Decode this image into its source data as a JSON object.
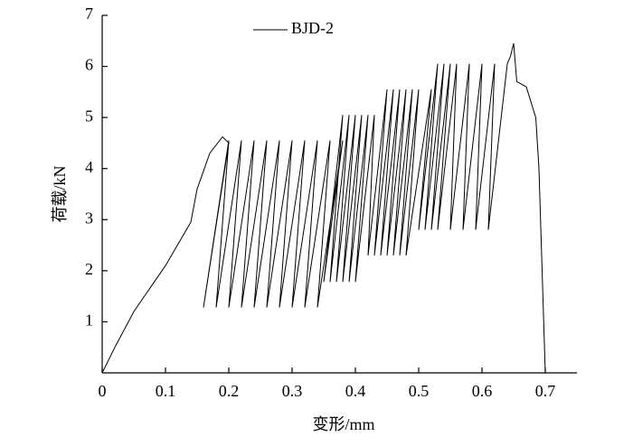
{
  "chart_data": {
    "type": "line",
    "x_label": "变形/mm",
    "y_label": "荷载/kN",
    "xlim": [
      0,
      0.75
    ],
    "ylim": [
      0,
      7
    ],
    "xticks": [
      0,
      0.1,
      0.2,
      0.3,
      0.4,
      0.5,
      0.6,
      0.7
    ],
    "yticks": [
      1,
      2,
      3,
      4,
      5,
      6,
      7
    ],
    "legend": "upper left",
    "x": [
      0,
      0.02,
      0.05,
      0.1,
      0.14,
      0.15,
      0.17,
      0.19,
      0.2,
      0.16,
      0.2,
      0.18,
      0.22,
      0.2,
      0.24,
      0.22,
      0.26,
      0.24,
      0.28,
      0.26,
      0.3,
      0.28,
      0.32,
      0.3,
      0.34,
      0.32,
      0.36,
      0.34,
      0.38,
      0.35,
      0.38,
      0.36,
      0.39,
      0.37,
      0.4,
      0.38,
      0.41,
      0.39,
      0.42,
      0.4,
      0.43,
      0.42,
      0.45,
      0.43,
      0.46,
      0.44,
      0.47,
      0.45,
      0.48,
      0.46,
      0.49,
      0.47,
      0.5,
      0.48,
      0.52,
      0.5,
      0.53,
      0.51,
      0.54,
      0.52,
      0.55,
      0.53,
      0.56,
      0.55,
      0.58,
      0.57,
      0.6,
      0.59,
      0.62,
      0.61,
      0.64,
      0.645,
      0.65,
      0.655,
      0.67,
      0.685,
      0.69,
      0.695,
      0.7
    ],
    "series": [
      {
        "name": "BJD-2",
        "color": "#000000",
        "values": [
          0,
          0.5,
          1.2,
          2.1,
          2.95,
          3.6,
          4.3,
          4.62,
          4.5,
          1.28,
          4.55,
          1.28,
          4.55,
          1.28,
          4.55,
          1.28,
          4.55,
          1.28,
          4.55,
          1.28,
          4.55,
          1.28,
          4.55,
          1.28,
          4.55,
          1.28,
          4.55,
          1.28,
          4.55,
          1.78,
          5.05,
          1.78,
          5.05,
          1.78,
          5.05,
          1.78,
          5.05,
          1.78,
          5.05,
          1.78,
          5.05,
          2.3,
          5.55,
          2.3,
          5.55,
          2.3,
          5.55,
          2.3,
          5.55,
          2.3,
          5.55,
          2.3,
          5.55,
          2.3,
          5.55,
          2.8,
          6.05,
          2.8,
          6.05,
          2.8,
          6.05,
          2.8,
          6.05,
          2.8,
          6.05,
          2.8,
          6.05,
          2.8,
          6.05,
          2.8,
          6.05,
          6.2,
          6.45,
          5.7,
          5.6,
          5.0,
          4.0,
          2.0,
          0
        ]
      }
    ]
  }
}
